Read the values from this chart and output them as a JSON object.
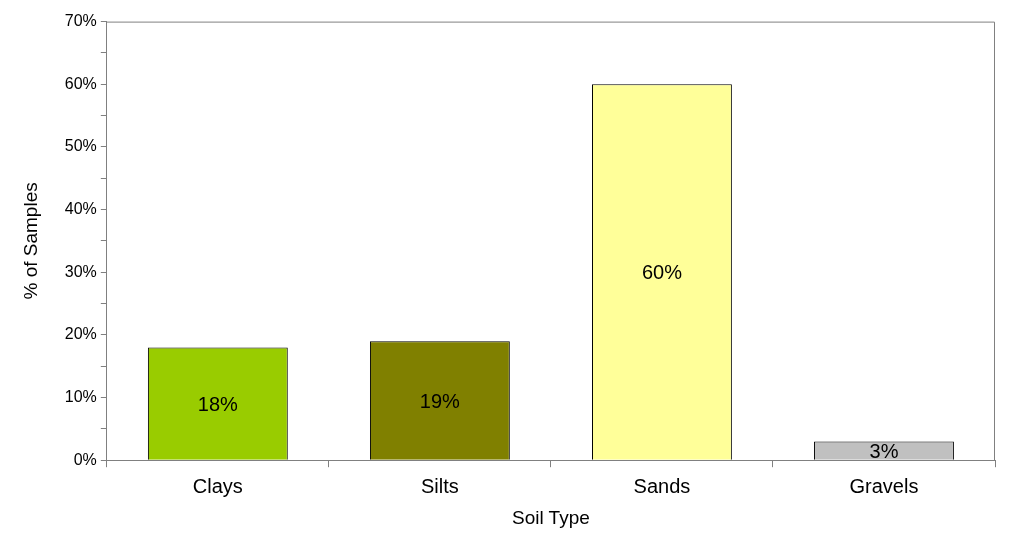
{
  "chart_data": {
    "type": "bar",
    "xlabel": "Soil Type",
    "ylabel": "% of Samples",
    "categories": [
      "Clays",
      "Silts",
      "Sands",
      "Gravels"
    ],
    "values": [
      18,
      19,
      60,
      3
    ],
    "colors": [
      "#99cc00",
      "#808000",
      "#ffff99",
      "#c0c0c0"
    ],
    "value_labels": [
      "18%",
      "19%",
      "60%",
      "3%"
    ],
    "ylim": [
      0,
      70
    ],
    "yticks": [
      {
        "value": 0,
        "label": "0%"
      },
      {
        "value": 5,
        "label": null
      },
      {
        "value": 10,
        "label": "10%"
      },
      {
        "value": 15,
        "label": null
      },
      {
        "value": 20,
        "label": "20%"
      },
      {
        "value": 25,
        "label": null
      },
      {
        "value": 30,
        "label": "30%"
      },
      {
        "value": 35,
        "label": null
      },
      {
        "value": 40,
        "label": "40%"
      },
      {
        "value": 45,
        "label": null
      },
      {
        "value": 50,
        "label": "50%"
      },
      {
        "value": 55,
        "label": null
      },
      {
        "value": 60,
        "label": "60%"
      },
      {
        "value": 65,
        "label": null
      },
      {
        "value": 70,
        "label": "70%"
      }
    ],
    "grid": false,
    "legend": false
  }
}
